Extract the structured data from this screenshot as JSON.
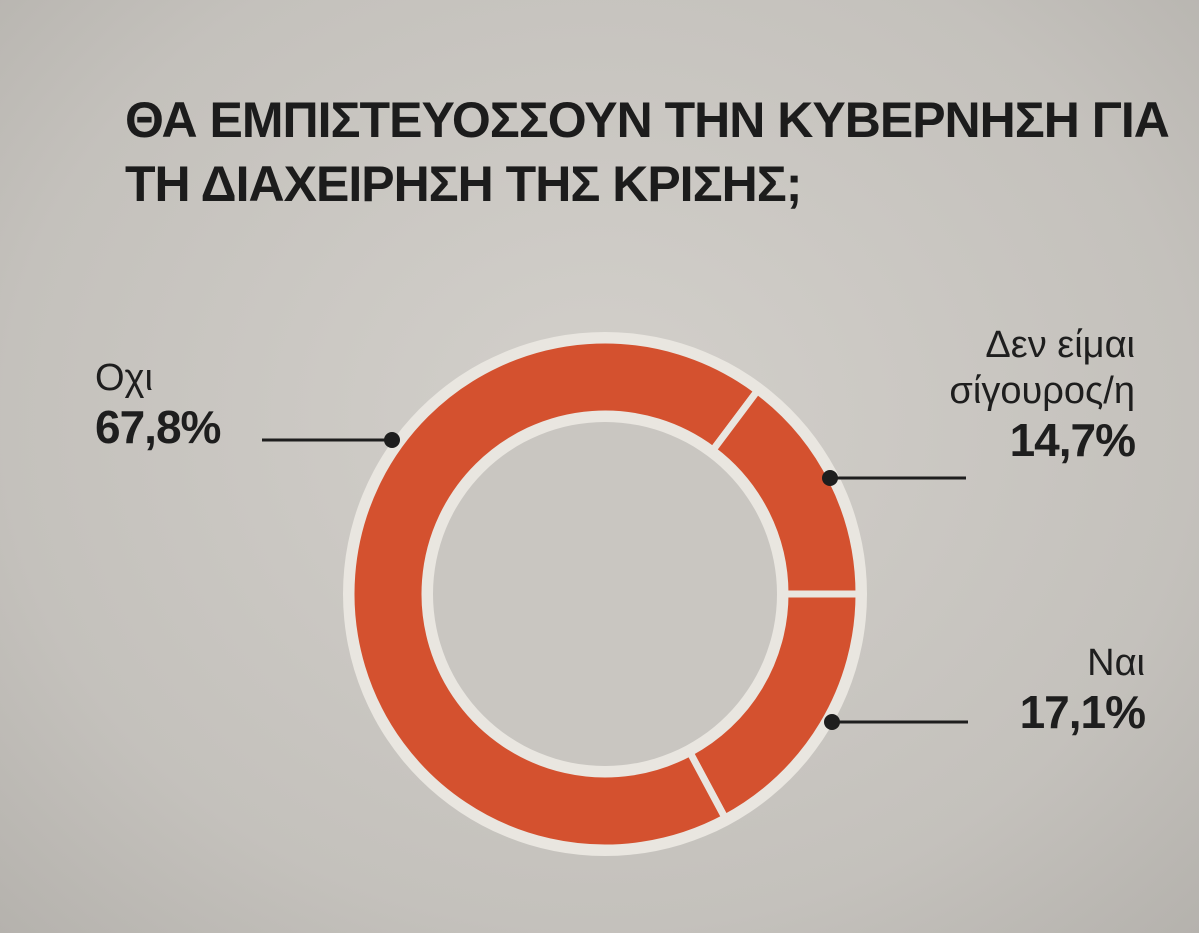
{
  "chart_data": {
    "type": "donut",
    "title": "ΘΑ ΕΜΠΙΣΤΕΥΟΣΣΟΥΝ ΤΗΝ ΚΥΒΕΡΝΗΣΗ ΓΙΑ ΤΗ ΔΙΑΧΕΙΡΗΣΗ ΤΗΣ ΚΡΙΣΗΣ;",
    "categories": [
      "Ναι",
      "Οχι",
      "Δεν είμαι σίγουρος/η"
    ],
    "values": [
      17.1,
      67.8,
      14.7
    ],
    "value_labels": [
      "17,1%",
      "67,8%",
      "14,7%"
    ],
    "color": "#d4512f"
  }
}
